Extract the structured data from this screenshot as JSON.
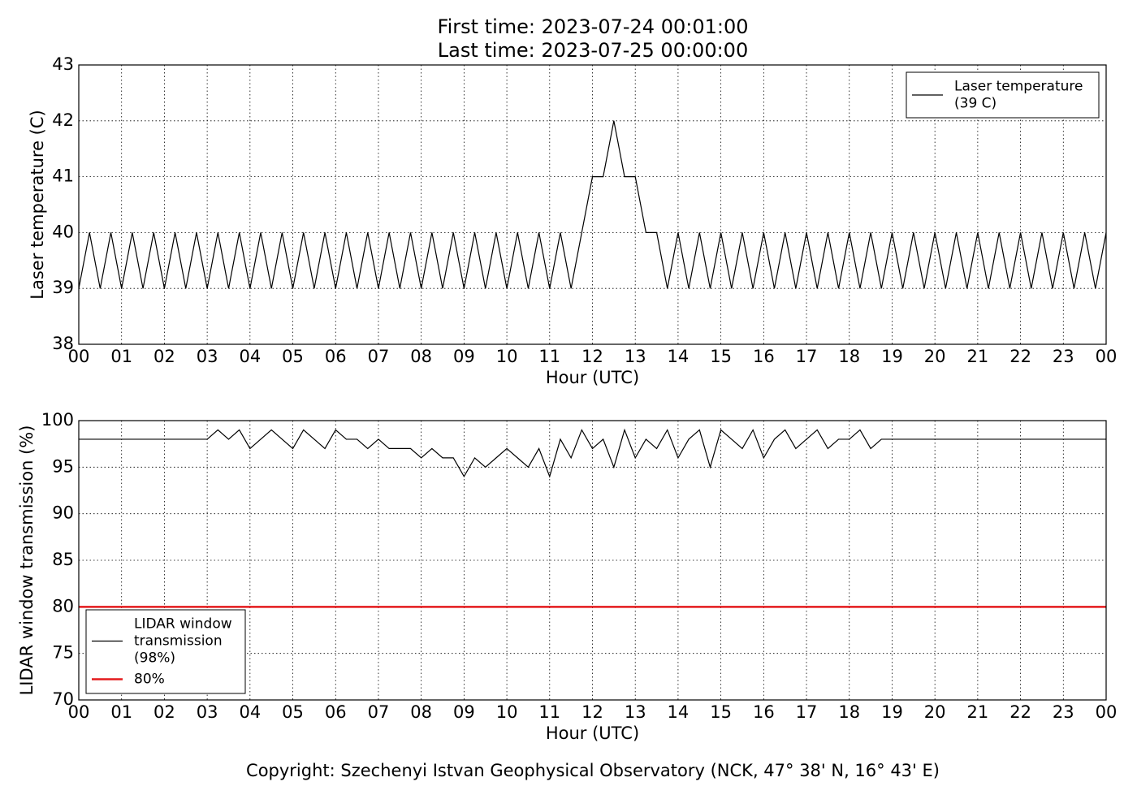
{
  "title": [
    "First time: 2023-07-24 00:01:00",
    "Last time: 2023-07-25 00:00:00"
  ],
  "footer": "Copyright: Szechenyi Istvan Geophysical Observatory (NCK, 47° 38' N, 16° 43' E)",
  "chart_data": [
    {
      "type": "line",
      "xlabel": "Hour (UTC)",
      "ylabel": "Laser temperature (C)",
      "xlim": [
        0,
        24
      ],
      "ylim": [
        38,
        43
      ],
      "yticks": [
        38,
        39,
        40,
        41,
        42,
        43
      ],
      "xticks": [
        {
          "value": 0,
          "label": "00"
        },
        {
          "value": 1,
          "label": "01"
        },
        {
          "value": 2,
          "label": "02"
        },
        {
          "value": 3,
          "label": "03"
        },
        {
          "value": 4,
          "label": "04"
        },
        {
          "value": 5,
          "label": "05"
        },
        {
          "value": 6,
          "label": "06"
        },
        {
          "value": 7,
          "label": "07"
        },
        {
          "value": 8,
          "label": "08"
        },
        {
          "value": 9,
          "label": "09"
        },
        {
          "value": 10,
          "label": "10"
        },
        {
          "value": 11,
          "label": "11"
        },
        {
          "value": 12,
          "label": "12"
        },
        {
          "value": 13,
          "label": "13"
        },
        {
          "value": 14,
          "label": "14"
        },
        {
          "value": 15,
          "label": "15"
        },
        {
          "value": 16,
          "label": "16"
        },
        {
          "value": 17,
          "label": "17"
        },
        {
          "value": 18,
          "label": "18"
        },
        {
          "value": 19,
          "label": "19"
        },
        {
          "value": 20,
          "label": "20"
        },
        {
          "value": 21,
          "label": "21"
        },
        {
          "value": 22,
          "label": "22"
        },
        {
          "value": 23,
          "label": "23"
        },
        {
          "value": 24,
          "label": "00"
        }
      ],
      "grid": true,
      "legend": "upper right",
      "x": [
        0,
        0.25,
        0.5,
        0.75,
        1,
        1.25,
        1.5,
        1.75,
        2,
        2.25,
        2.5,
        2.75,
        3,
        3.25,
        3.5,
        3.75,
        4,
        4.25,
        4.5,
        4.75,
        5,
        5.25,
        5.5,
        5.75,
        6,
        6.25,
        6.5,
        6.75,
        7,
        7.25,
        7.5,
        7.75,
        8,
        8.25,
        8.5,
        8.75,
        9,
        9.25,
        9.5,
        9.75,
        10,
        10.25,
        10.5,
        10.75,
        11,
        11.25,
        11.5,
        11.75,
        12,
        12.25,
        12.5,
        12.75,
        13,
        13.25,
        13.5,
        13.75,
        14,
        14.25,
        14.5,
        14.75,
        15,
        15.25,
        15.5,
        15.75,
        16,
        16.25,
        16.5,
        16.75,
        17,
        17.25,
        17.5,
        17.75,
        18,
        18.25,
        18.5,
        18.75,
        19,
        19.25,
        19.5,
        19.75,
        20,
        20.25,
        20.5,
        20.75,
        21,
        21.25,
        21.5,
        21.75,
        22,
        22.25,
        22.5,
        22.75,
        23,
        23.25,
        23.5,
        23.75,
        24
      ],
      "series": [
        {
          "name": [
            "Laser temperature",
            "(39 C)"
          ],
          "color": "#000000",
          "values": [
            39,
            40,
            39,
            40,
            39,
            40,
            39,
            40,
            39,
            40,
            39,
            40,
            39,
            40,
            39,
            40,
            39,
            40,
            39,
            40,
            39,
            40,
            39,
            40,
            39,
            40,
            39,
            40,
            39,
            40,
            39,
            40,
            39,
            40,
            39,
            40,
            39,
            40,
            39,
            40,
            39,
            40,
            39,
            40,
            39,
            40,
            39,
            40,
            41,
            41,
            42,
            41,
            41,
            40,
            40,
            39,
            40,
            39,
            40,
            39,
            40,
            39,
            40,
            39,
            40,
            39,
            40,
            39,
            40,
            39,
            40,
            39,
            40,
            39,
            40,
            39,
            40,
            39,
            40,
            39,
            40,
            39,
            40,
            39,
            40,
            39,
            40,
            39,
            40,
            39,
            40,
            39,
            40,
            39,
            40,
            39,
            40
          ]
        }
      ]
    },
    {
      "type": "line",
      "xlabel": "Hour (UTC)",
      "ylabel": "LIDAR window transmission (%)",
      "xlim": [
        0,
        24
      ],
      "ylim": [
        70,
        100
      ],
      "yticks": [
        70,
        75,
        80,
        85,
        90,
        95,
        100
      ],
      "xticks": [
        {
          "value": 0,
          "label": "00"
        },
        {
          "value": 1,
          "label": "01"
        },
        {
          "value": 2,
          "label": "02"
        },
        {
          "value": 3,
          "label": "03"
        },
        {
          "value": 4,
          "label": "04"
        },
        {
          "value": 5,
          "label": "05"
        },
        {
          "value": 6,
          "label": "06"
        },
        {
          "value": 7,
          "label": "07"
        },
        {
          "value": 8,
          "label": "08"
        },
        {
          "value": 9,
          "label": "09"
        },
        {
          "value": 10,
          "label": "10"
        },
        {
          "value": 11,
          "label": "11"
        },
        {
          "value": 12,
          "label": "12"
        },
        {
          "value": 13,
          "label": "13"
        },
        {
          "value": 14,
          "label": "14"
        },
        {
          "value": 15,
          "label": "15"
        },
        {
          "value": 16,
          "label": "16"
        },
        {
          "value": 17,
          "label": "17"
        },
        {
          "value": 18,
          "label": "18"
        },
        {
          "value": 19,
          "label": "19"
        },
        {
          "value": 20,
          "label": "20"
        },
        {
          "value": 21,
          "label": "21"
        },
        {
          "value": 22,
          "label": "22"
        },
        {
          "value": 23,
          "label": "23"
        },
        {
          "value": 24,
          "label": "00"
        }
      ],
      "grid": true,
      "legend": "lower left",
      "x": [
        0,
        0.25,
        0.5,
        0.75,
        1,
        1.25,
        1.5,
        1.75,
        2,
        2.25,
        2.5,
        2.75,
        3,
        3.25,
        3.5,
        3.75,
        4,
        4.25,
        4.5,
        4.75,
        5,
        5.25,
        5.5,
        5.75,
        6,
        6.25,
        6.5,
        6.75,
        7,
        7.25,
        7.5,
        7.75,
        8,
        8.25,
        8.5,
        8.75,
        9,
        9.25,
        9.5,
        9.75,
        10,
        10.25,
        10.5,
        10.75,
        11,
        11.25,
        11.5,
        11.75,
        12,
        12.25,
        12.5,
        12.75,
        13,
        13.25,
        13.5,
        13.75,
        14,
        14.25,
        14.5,
        14.75,
        15,
        15.25,
        15.5,
        15.75,
        16,
        16.25,
        16.5,
        16.75,
        17,
        17.25,
        17.5,
        17.75,
        18,
        18.25,
        18.5,
        18.75,
        19,
        19.25,
        19.5,
        19.75,
        20,
        20.25,
        20.5,
        20.75,
        21,
        21.25,
        21.5,
        21.75,
        22,
        22.25,
        22.5,
        22.75,
        23,
        23.25,
        23.5,
        23.75,
        24
      ],
      "series": [
        {
          "name": [
            "LIDAR window",
            "transmission",
            "(98%)"
          ],
          "color": "#000000",
          "values": [
            98,
            98,
            98,
            98,
            98,
            98,
            98,
            98,
            98,
            98,
            98,
            98,
            98,
            99,
            98,
            99,
            97,
            98,
            99,
            98,
            97,
            99,
            98,
            97,
            99,
            98,
            98,
            97,
            98,
            97,
            97,
            97,
            96,
            97,
            96,
            96,
            94,
            96,
            95,
            96,
            97,
            96,
            95,
            97,
            94,
            98,
            96,
            99,
            97,
            98,
            95,
            99,
            96,
            98,
            97,
            99,
            96,
            98,
            99,
            95,
            99,
            98,
            97,
            99,
            96,
            98,
            99,
            97,
            98,
            99,
            97,
            98,
            98,
            99,
            97,
            98,
            98,
            98,
            98,
            98,
            98,
            98,
            98,
            98,
            98,
            98,
            98,
            98,
            98,
            98,
            98,
            98,
            98,
            98,
            98,
            98,
            98
          ]
        },
        {
          "name": [
            "80%"
          ],
          "color": "#e41a1c",
          "x": [
            0,
            24
          ],
          "values": [
            80,
            80
          ]
        }
      ]
    }
  ]
}
